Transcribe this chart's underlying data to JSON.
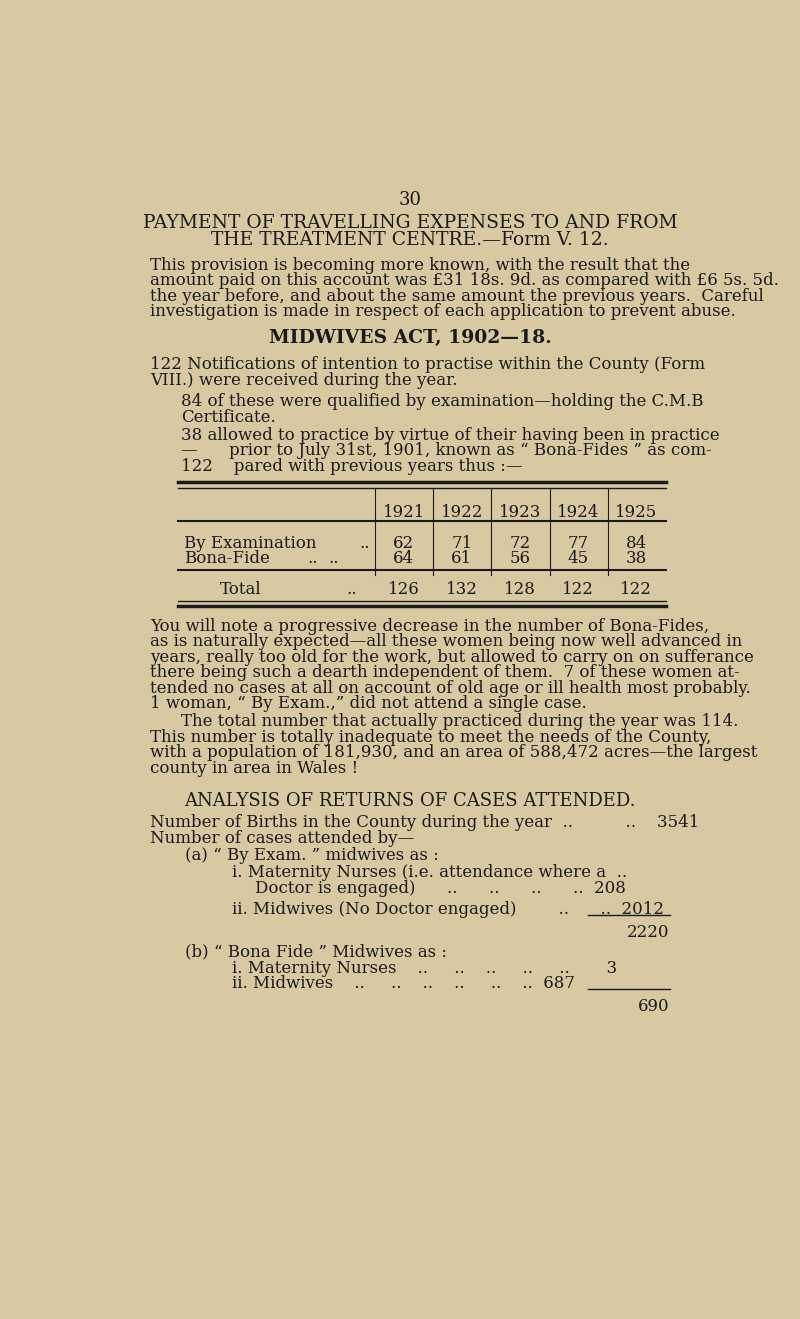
{
  "bg_color": "#d9c9a3",
  "text_color": "#1a1a1a",
  "page_number": "30",
  "title_line1": "PAYMENT OF TRAVELLING EXPENSES TO AND FROM",
  "title_line2": "THE TREATMENT CENTRE.—Form V. 12.",
  "para1_lines": [
    "This provision is becoming more known, with the result that the",
    "amount paid on this account was £31 18s. 9d. as compared with £6 5s. 5d.",
    "the year before, and about the same amount the previous years.  Careful",
    "investigation is made in respect of each application to prevent abuse."
  ],
  "midwives_heading": "MIDWIVES ACT, 1902—18.",
  "para2_line1": "122 Notifications of intention to practise within the County (Form",
  "para2_line2": "VIII.) were received during the year.",
  "para3_line1": "84 of these were qualified by examination—holding the C.M.B",
  "para3_line2": "Certificate.",
  "para4_lines": [
    "38 allowed to practice by virtue of their having been in practice",
    "—      prior to July 31st, 1901, known as “ Bona-Fides ” as com-",
    "122    pared with previous years thus :—"
  ],
  "table_years": [
    "1921",
    "1922",
    "1923",
    "1924",
    "1925"
  ],
  "table_row1_label": "By Examination",
  "table_row1_values": [
    "62",
    "71",
    "72",
    "77",
    "84"
  ],
  "table_row2_label": "Bona-Fide",
  "table_row2_values": [
    "64",
    "61",
    "56",
    "45",
    "38"
  ],
  "table_row3_label": "Total",
  "table_row3_values": [
    "126",
    "132",
    "128",
    "122",
    "122"
  ],
  "para5_lines": [
    "You will note a progressive decrease in the number of Bona-Fides,",
    "as is naturally expected—all these women being now well advanced in",
    "years, really too old for the work, but allowed to carry on on sufferance",
    "there being such a dearth independent of them.  7 of these women at-",
    "tended no cases at all on account of old age or ill health most probably.",
    "1 woman, “ By Exam.,” did not attend a single case."
  ],
  "para6_lines": [
    "The total number that actually practiced during the year was 114.",
    "This number is totally inadequate to meet the needs of the County,",
    "with a population of 181,930, and an area of 588,472 acres—the largest",
    "county in area in Wales !"
  ],
  "analysis_heading": "ANALYSIS OF RETURNS OF CASES ATTENDED.",
  "births_label": "Number of Births in the County during the year  ..          ..    3541",
  "cases_label": "Number of cases attended by—",
  "a_heading": "(a) “ By Exam. ” midwives as :",
  "a_i_line1": "i. Maternity Nurses (i.e. attendance where a  ..",
  "a_i_line2": "Doctor is engaged)      ..      ..      ..      ..  208",
  "a_ii_line": "ii. Midwives (No Doctor engaged)        ..      ..  2012",
  "a_subtotal": "2220",
  "b_heading": "(b) “ Bona Fide ” Midwives as :",
  "b_i_line": "i. Maternity Nurses    ..     ..    ..     ..     ..       3",
  "b_ii_line": "ii. Midwives    ..     ..    ..    ..     ..    ..  687",
  "b_subtotal": "690"
}
